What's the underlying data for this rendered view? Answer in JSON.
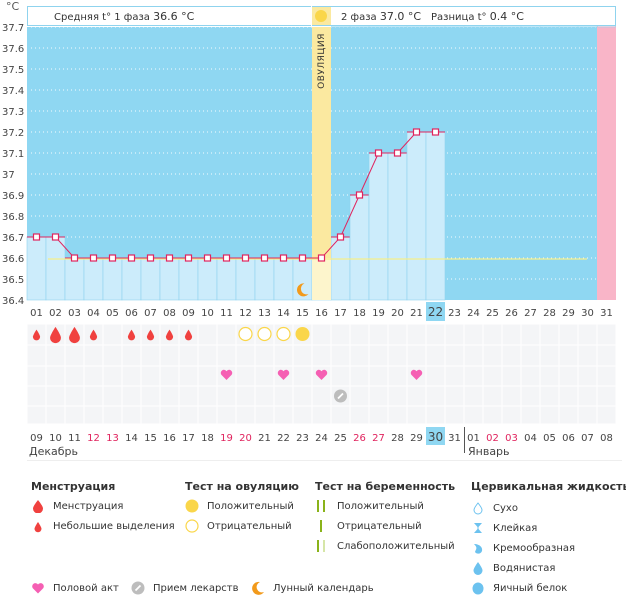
{
  "header": {
    "unit": "°C",
    "phase1_label": "Средняя t° 1 фаза",
    "phase1_value": "36.6 °C",
    "phase2_label": "2 фаза",
    "phase2_value": "37.0 °C",
    "diff_label": "Разница t°",
    "diff_value": "0.4 °C",
    "ovulation_label": "ОВУЛЯЦИЯ"
  },
  "months": {
    "first": "Декабрь",
    "second": "Январь"
  },
  "colors": {
    "plot_bg": "#8fd7f2",
    "bar_fill": "#ccecfb",
    "line": "#e0245e",
    "ovulation": "#fbe9a0",
    "cover_line": "#f5ee8a",
    "next_cycle": "#f9b5c8",
    "today": "#8fd7f2",
    "heart": "#f55fb3",
    "drop": "#f0413f",
    "test": "#fad64a",
    "pill": "#bdbdbd",
    "moon": "#f29a1b"
  },
  "chart_data": {
    "type": "line",
    "title": "",
    "ylabel": "°C",
    "ylim": [
      36.4,
      37.7
    ],
    "yticks": [
      "37.7",
      "37.6",
      "37.5",
      "37.4",
      "37.3",
      "37.2",
      "37.1",
      "37",
      "36.9",
      "36.8",
      "36.7",
      "36.6",
      "36.5",
      "36.4"
    ],
    "cycle_days": [
      "01",
      "02",
      "03",
      "04",
      "05",
      "06",
      "07",
      "08",
      "09",
      "10",
      "11",
      "12",
      "13",
      "14",
      "15",
      "16",
      "17",
      "18",
      "19",
      "20",
      "21",
      "22",
      "23",
      "24",
      "25",
      "26",
      "27",
      "28",
      "29",
      "30",
      "31"
    ],
    "temperatures": [
      36.7,
      36.7,
      36.6,
      36.6,
      36.6,
      36.6,
      36.6,
      36.6,
      36.6,
      36.6,
      36.6,
      36.6,
      36.6,
      36.6,
      36.6,
      36.6,
      36.7,
      36.9,
      37.1,
      37.1,
      37.2,
      37.2,
      null,
      null,
      null,
      null,
      null,
      null,
      null,
      null,
      null
    ],
    "cover_line": 36.6,
    "ovulation_day": 16,
    "current_day": 22,
    "phase2_days": [
      "01",
      "02",
      "03",
      "04",
      "05",
      "06",
      "07",
      "08",
      "09",
      "10",
      "11",
      "12",
      "13",
      "14",
      "15"
    ],
    "next_cycle_day": 31,
    "calendar_dates": [
      "09",
      "10",
      "11",
      "12",
      "13",
      "14",
      "15",
      "16",
      "17",
      "18",
      "19",
      "20",
      "21",
      "22",
      "23",
      "24",
      "25",
      "26",
      "27",
      "28",
      "29",
      "30",
      "31",
      "01",
      "02",
      "03",
      "04",
      "05",
      "06",
      "07",
      "08"
    ],
    "weekend_dates_idx": [
      3,
      4,
      10,
      11,
      17,
      18,
      24,
      25
    ],
    "today_date_idx": 21,
    "menstruation": [
      {
        "day": 1,
        "size": "small"
      },
      {
        "day": 2,
        "size": "large"
      },
      {
        "day": 3,
        "size": "large"
      },
      {
        "day": 4,
        "size": "small"
      },
      {
        "day": 6,
        "size": "small"
      },
      {
        "day": 7,
        "size": "small"
      },
      {
        "day": 8,
        "size": "small"
      },
      {
        "day": 9,
        "size": "small"
      }
    ],
    "ovulation_tests": [
      {
        "day": 12,
        "result": "negative"
      },
      {
        "day": 13,
        "result": "negative"
      },
      {
        "day": 14,
        "result": "negative"
      },
      {
        "day": 15,
        "result": "positive"
      }
    ],
    "intercourse_days": [
      11,
      14,
      16,
      21
    ],
    "medication_days": [
      17
    ],
    "moon_days": [
      15
    ]
  },
  "legend": {
    "menstruation": {
      "title": "Менструация",
      "items": [
        "Менструация",
        "Небольшие выделения"
      ]
    },
    "ovulation_test": {
      "title": "Тест на овуляцию",
      "items": [
        "Положительный",
        "Отрицательный"
      ]
    },
    "pregnancy_test": {
      "title": "Тест на беременность",
      "items": [
        "Положительный",
        "Отрицательный",
        "Слабоположительный"
      ]
    },
    "cervical_fluid": {
      "title": "Цервикальная жидкость",
      "items": [
        "Сухо",
        "Клейкая",
        "Кремообразная",
        "Водянистая",
        "Яичный белок"
      ]
    },
    "other": [
      "Половой акт",
      "Прием лекарств",
      "Лунный календарь"
    ]
  }
}
